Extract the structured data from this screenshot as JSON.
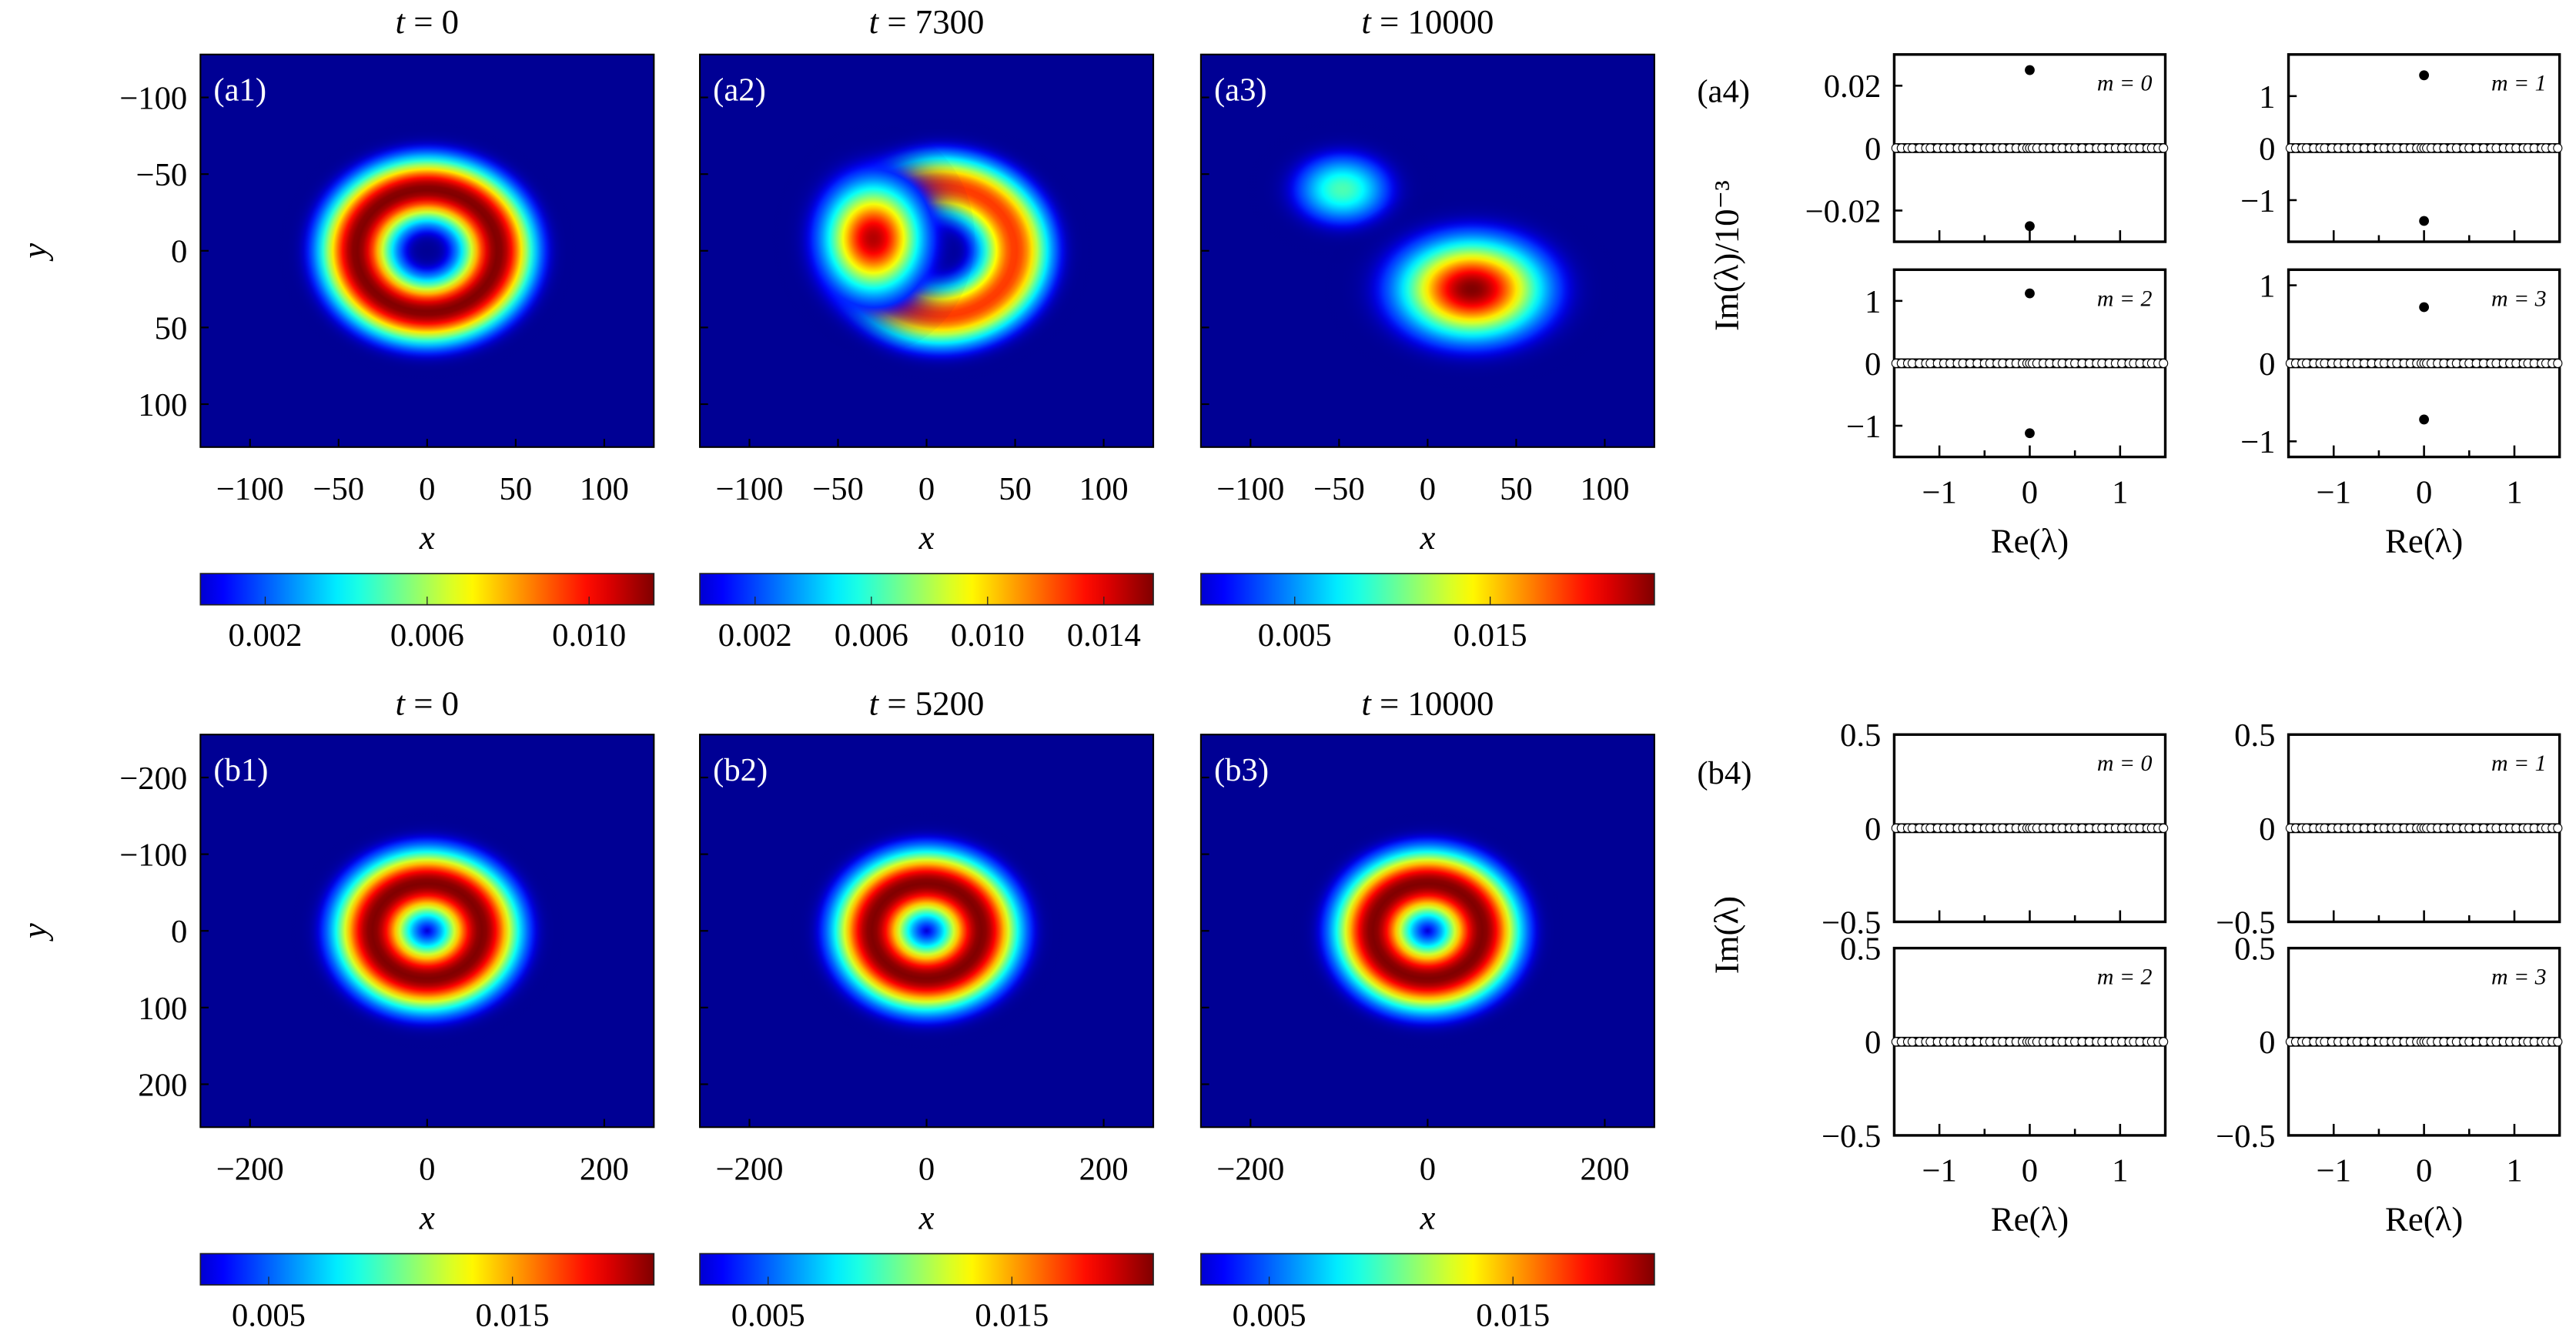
{
  "chart_data": [
    {
      "id": "a1",
      "type": "heatmap",
      "panel_label": "(a1)",
      "title": "t = 0",
      "xlabel": "x",
      "ylabel": "y",
      "range": 128,
      "xticks": [
        -100,
        -50,
        0,
        50,
        100
      ],
      "yticks": [
        -100,
        -50,
        0,
        50,
        100
      ],
      "features": [
        {
          "kind": "ring",
          "cx": 0,
          "cy": 0,
          "r0": 40,
          "w": 20,
          "amp": 1.0
        }
      ],
      "colorbar": {
        "min": 0.0004,
        "max": 0.0116,
        "ticks": [
          0.002,
          0.006,
          0.01
        ],
        "tick_labels": [
          "0.002",
          "0.006",
          "0.010"
        ]
      }
    },
    {
      "id": "a2",
      "type": "heatmap",
      "panel_label": "(a2)",
      "title": "t = 7300",
      "xlabel": "x",
      "ylabel": "",
      "range": 128,
      "xticks": [
        -100,
        -50,
        0,
        50,
        100
      ],
      "yticks": [
        -100,
        -50,
        0,
        50,
        100
      ],
      "features": [
        {
          "kind": "ring",
          "cx": 8,
          "cy": 0,
          "r0": 42,
          "w": 20,
          "amp": 0.82
        },
        {
          "kind": "blob",
          "cx": -30,
          "cy": -8,
          "rx": 26,
          "ry": 34,
          "amp": 0.95
        }
      ],
      "colorbar": {
        "min": 0.0001,
        "max": 0.0157,
        "ticks": [
          0.002,
          0.006,
          0.01,
          0.014
        ],
        "tick_labels": [
          "0.002",
          "0.006",
          "0.010",
          "0.014"
        ]
      }
    },
    {
      "id": "a3",
      "type": "heatmap",
      "panel_label": "(a3)",
      "title": "t = 10000",
      "xlabel": "x",
      "ylabel": "",
      "range": 128,
      "xticks": [
        -100,
        -50,
        0,
        50,
        100
      ],
      "yticks": [
        -100,
        -50,
        0,
        50,
        100
      ],
      "features": [
        {
          "kind": "blob",
          "cx": -48,
          "cy": -40,
          "rx": 26,
          "ry": 22,
          "amp": 0.45
        },
        {
          "kind": "blob",
          "cx": 25,
          "cy": 25,
          "rx": 38,
          "ry": 30,
          "amp": 1.0
        }
      ],
      "colorbar": {
        "min": 0.0002,
        "max": 0.0234,
        "ticks": [
          0.005,
          0.015
        ],
        "tick_labels": [
          "0.005",
          "0.015"
        ]
      }
    },
    {
      "id": "b1",
      "type": "heatmap",
      "panel_label": "(b1)",
      "title": "t = 0",
      "xlabel": "x",
      "ylabel": "y",
      "range": 256,
      "xticks": [
        -200,
        0,
        200
      ],
      "yticks": [
        -200,
        -100,
        0,
        100,
        200
      ],
      "features": [
        {
          "kind": "ring",
          "cx": 0,
          "cy": 0,
          "r0": 62,
          "w": 42,
          "amp": 1.0
        }
      ],
      "colorbar": {
        "min": 0.0022,
        "max": 0.0208,
        "ticks": [
          0.005,
          0.015
        ],
        "tick_labels": [
          "0.005",
          "0.015"
        ]
      }
    },
    {
      "id": "b2",
      "type": "heatmap",
      "panel_label": "(b2)",
      "title": "t = 5200",
      "xlabel": "x",
      "ylabel": "",
      "range": 256,
      "xticks": [
        -200,
        0,
        200
      ],
      "yticks": [
        -200,
        -100,
        0,
        100,
        200
      ],
      "features": [
        {
          "kind": "ring",
          "cx": 0,
          "cy": 0,
          "r0": 62,
          "w": 42,
          "amp": 1.0
        }
      ],
      "colorbar": {
        "min": 0.0022,
        "max": 0.0208,
        "ticks": [
          0.005,
          0.015
        ],
        "tick_labels": [
          "0.005",
          "0.015"
        ]
      }
    },
    {
      "id": "b3",
      "type": "heatmap",
      "panel_label": "(b3)",
      "title": "t = 10000",
      "xlabel": "x",
      "ylabel": "",
      "range": 256,
      "xticks": [
        -200,
        0,
        200
      ],
      "yticks": [
        -200,
        -100,
        0,
        100,
        200
      ],
      "features": [
        {
          "kind": "ring",
          "cx": 0,
          "cy": 0,
          "r0": 62,
          "w": 42,
          "amp": 1.0
        }
      ],
      "colorbar": {
        "min": 0.0022,
        "max": 0.0208,
        "ticks": [
          0.005,
          0.015
        ],
        "tick_labels": [
          "0.005",
          "0.015"
        ]
      }
    },
    {
      "id": "a4",
      "type": "scatter",
      "panel_label": "(a4)",
      "ylabel": "Im(λ)/10⁻³",
      "xlabel": "Re(λ)",
      "xlim": [
        -1.5,
        1.5
      ],
      "xticks": [
        -1,
        0,
        1
      ],
      "subplots": [
        {
          "label": "m = 0",
          "ylim": [
            -0.03,
            0.03
          ],
          "yticks": [
            -0.02,
            0,
            0.02
          ],
          "ytick_labels": [
            "−0.02",
            "0",
            "0.02"
          ],
          "unstable_im": [
            0.025,
            -0.025
          ]
        },
        {
          "label": "m = 1",
          "ylim": [
            -1.8,
            1.8
          ],
          "yticks": [
            -1,
            0,
            1
          ],
          "ytick_labels": [
            "−1",
            "0",
            "1"
          ],
          "unstable_im": [
            1.4,
            -1.4
          ]
        },
        {
          "label": "m = 2",
          "ylim": [
            -1.5,
            1.5
          ],
          "yticks": [
            -1,
            0,
            1
          ],
          "ytick_labels": [
            "−1",
            "0",
            "1"
          ],
          "unstable_im": [
            1.12,
            -1.12
          ]
        },
        {
          "label": "m = 3",
          "ylim": [
            -1.2,
            1.2
          ],
          "yticks": [
            -1,
            0,
            1
          ],
          "ytick_labels": [
            "−1",
            "0",
            "1"
          ],
          "unstable_im": [
            0.72,
            -0.72
          ]
        }
      ]
    },
    {
      "id": "b4",
      "type": "scatter",
      "panel_label": "(b4)",
      "ylabel": "Im(λ)",
      "xlabel": "Re(λ)",
      "xlim": [
        -1.5,
        1.5
      ],
      "xticks": [
        -1,
        0,
        1
      ],
      "subplots": [
        {
          "label": "m = 0",
          "ylim": [
            -0.5,
            0.5
          ],
          "yticks": [
            -0.5,
            0,
            0.5
          ],
          "ytick_labels": [
            "−0.5",
            "0",
            "0.5"
          ],
          "unstable_im": []
        },
        {
          "label": "m = 1",
          "ylim": [
            -0.5,
            0.5
          ],
          "yticks": [
            -0.5,
            0,
            0.5
          ],
          "ytick_labels": [
            "−0.5",
            "0",
            "0.5"
          ],
          "unstable_im": []
        },
        {
          "label": "m = 2",
          "ylim": [
            -0.5,
            0.5
          ],
          "yticks": [
            -0.5,
            0,
            0.5
          ],
          "ytick_labels": [
            "−0.5",
            "0",
            "0.5"
          ],
          "unstable_im": []
        },
        {
          "label": "m = 3",
          "ylim": [
            -0.5,
            0.5
          ],
          "yticks": [
            -0.5,
            0,
            0.5
          ],
          "ytick_labels": [
            "−0.5",
            "0",
            "0.5"
          ],
          "unstable_im": []
        }
      ]
    },
    {
      "id": "real_spectrum",
      "type": "scatter",
      "note_values": "Re(λ) of stable eigenvalues on Im(λ)=0 axis",
      "re_values": [
        -1.48,
        -1.42,
        -1.35,
        -1.3,
        -1.22,
        -1.15,
        -1.1,
        -1.02,
        -0.95,
        -0.88,
        -0.8,
        -0.74,
        -0.66,
        -0.58,
        -0.5,
        -0.44,
        -0.36,
        -0.3,
        -0.22,
        -0.15,
        -0.08,
        -0.03,
        0,
        0.03,
        0.08,
        0.15,
        0.22,
        0.3,
        0.36,
        0.44,
        0.5,
        0.58,
        0.66,
        0.74,
        0.8,
        0.88,
        0.95,
        1.02,
        1.1,
        1.15,
        1.22,
        1.3,
        1.35,
        1.42,
        1.48
      ]
    }
  ]
}
